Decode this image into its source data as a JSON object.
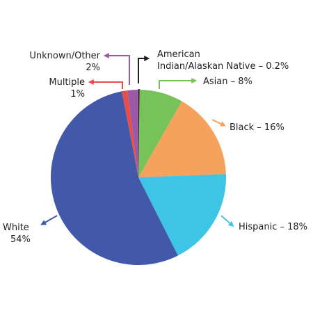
{
  "chart_data": {
    "type": "pie",
    "slices": [
      {
        "label": "American Indian/Alaskan Native",
        "value": 0.2,
        "value_text": "0.2%",
        "color": "#231f20",
        "label_line1": "American",
        "label_line2": "Indian/Alaskan Native – 0.2%"
      },
      {
        "label": "Asian",
        "value": 8,
        "value_text": "8%",
        "color": "#78c25a",
        "label_line1": "Asian – 8%"
      },
      {
        "label": "Black",
        "value": 16,
        "value_text": "16%",
        "color": "#f7a25c",
        "label_line1": "Black – 16%"
      },
      {
        "label": "Hispanic",
        "value": 18,
        "value_text": "18%",
        "color": "#3ec4e4",
        "label_line1": "Hispanic – 18%"
      },
      {
        "label": "White",
        "value": 54,
        "value_text": "54%",
        "color": "#4259aa",
        "label_line1": "White",
        "label_line2": "54%"
      },
      {
        "label": "Multiple",
        "value": 1,
        "value_text": "1%",
        "color": "#e84d47",
        "label_line1": "Multiple",
        "label_line2": "1%"
      },
      {
        "label": "Unknown/Other",
        "value": 2,
        "value_text": "2%",
        "color": "#9b59a6",
        "label_line1": "Unknown/Other",
        "label_line2": "2%"
      }
    ]
  }
}
